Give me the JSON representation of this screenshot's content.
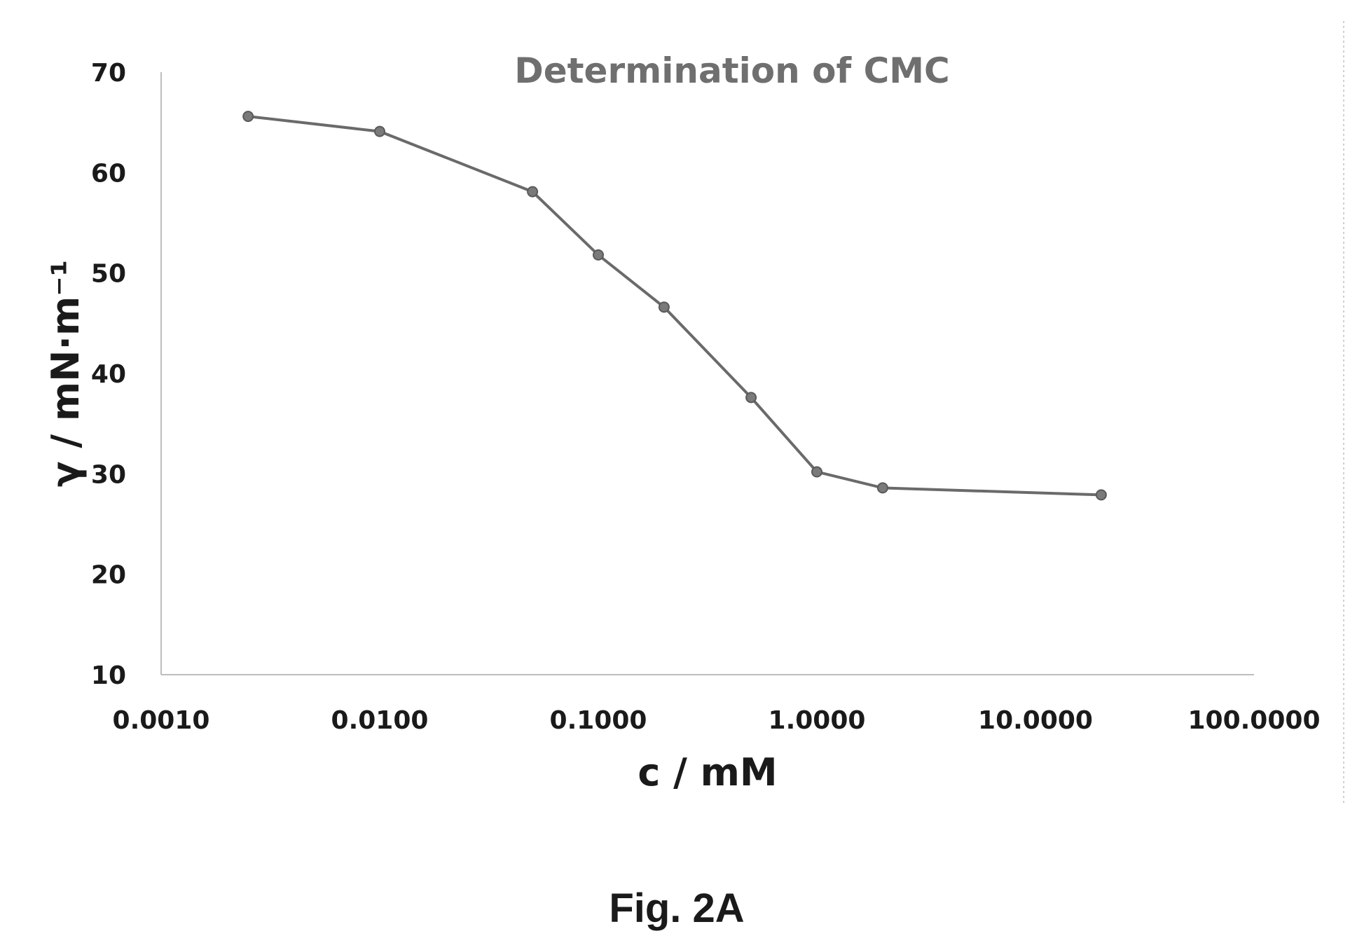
{
  "chart_data": {
    "type": "line",
    "title": "Determination of CMC",
    "xlabel": "c / mM",
    "ylabel": "γ / mN·m⁻¹",
    "x_scale": "log",
    "xlim": [
      0.001,
      100
    ],
    "ylim": [
      10,
      70
    ],
    "x_ticks": [
      "0.0010",
      "0.0100",
      "0.1000",
      "1.0000",
      "10.0000",
      "100.0000"
    ],
    "y_ticks": [
      "10",
      "20",
      "30",
      "40",
      "50",
      "60",
      "70"
    ],
    "grid": false,
    "legend": "none",
    "series": [
      {
        "x": [
          0.0025,
          0.01,
          0.05,
          0.1,
          0.2,
          0.5,
          1.0,
          2.0,
          20.0
        ],
        "y": [
          65.6,
          64.1,
          58.1,
          51.8,
          46.6,
          37.6,
          30.2,
          28.6,
          27.9
        ]
      }
    ],
    "colors": {
      "line": "#6a6a6a",
      "marker": "#7a7a7a",
      "title": "#6f6f6f"
    }
  },
  "caption": "Fig. 2A"
}
